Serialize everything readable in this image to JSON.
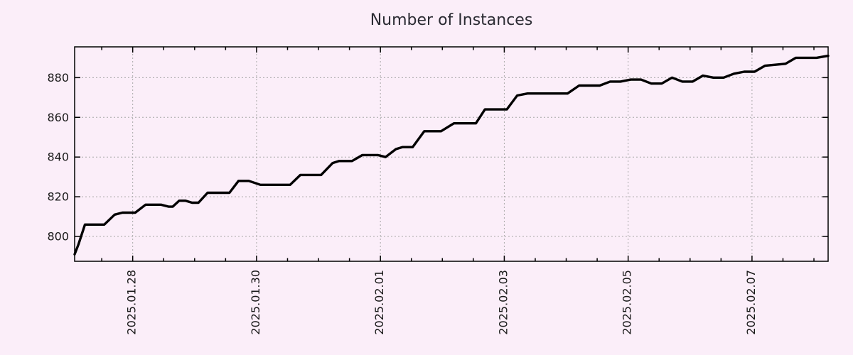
{
  "chart_data": {
    "type": "line",
    "title": "Number of Instances",
    "legend": null,
    "x_axis": {
      "type": "datetime",
      "min": "2025-01-27T01:30",
      "max": "2025-02-08T05:30",
      "major_ticks": [
        {
          "value": "2025-01-28T00:00",
          "label": "2025.01.28"
        },
        {
          "value": "2025-01-30T00:00",
          "label": "2025.01.30"
        },
        {
          "value": "2025-02-01T00:00",
          "label": "2025.02.01"
        },
        {
          "value": "2025-02-03T00:00",
          "label": "2025.02.03"
        },
        {
          "value": "2025-02-05T00:00",
          "label": "2025.02.05"
        },
        {
          "value": "2025-02-07T00:00",
          "label": "2025.02.07"
        }
      ],
      "minor_tick_hours": 12,
      "grid": true
    },
    "y_axis": {
      "min": 787.5,
      "max": 895.5,
      "ticks": [
        {
          "value": 800,
          "label": "800"
        },
        {
          "value": 820,
          "label": "820"
        },
        {
          "value": 840,
          "label": "840"
        },
        {
          "value": 860,
          "label": "860"
        },
        {
          "value": 880,
          "label": "880"
        }
      ],
      "grid": true
    },
    "series": [
      {
        "name": "instances",
        "color": "#000000",
        "line_width": 3.4,
        "points": [
          [
            "2025-01-27T01:30",
            791
          ],
          [
            "2025-01-27T03:00",
            796
          ],
          [
            "2025-01-27T05:30",
            806
          ],
          [
            "2025-01-27T13:00",
            806
          ],
          [
            "2025-01-27T17:00",
            811
          ],
          [
            "2025-01-27T20:00",
            812
          ],
          [
            "2025-01-28T01:00",
            812
          ],
          [
            "2025-01-28T05:00",
            816
          ],
          [
            "2025-01-28T11:00",
            816
          ],
          [
            "2025-01-28T14:00",
            815
          ],
          [
            "2025-01-28T15:30",
            815
          ],
          [
            "2025-01-28T18:00",
            818
          ],
          [
            "2025-01-28T20:30",
            818
          ],
          [
            "2025-01-28T23:00",
            817
          ],
          [
            "2025-01-29T01:30",
            817
          ],
          [
            "2025-01-29T05:00",
            822
          ],
          [
            "2025-01-29T13:30",
            822
          ],
          [
            "2025-01-29T17:00",
            828
          ],
          [
            "2025-01-29T21:00",
            828
          ],
          [
            "2025-01-30T01:30",
            826
          ],
          [
            "2025-01-30T13:00",
            826
          ],
          [
            "2025-01-30T17:00",
            831
          ],
          [
            "2025-01-31T01:00",
            831
          ],
          [
            "2025-01-31T05:30",
            837
          ],
          [
            "2025-01-31T08:00",
            838
          ],
          [
            "2025-01-31T13:00",
            838
          ],
          [
            "2025-01-31T17:00",
            841
          ],
          [
            "2025-01-31T23:00",
            841
          ],
          [
            "2025-02-01T02:00",
            840
          ],
          [
            "2025-02-01T06:00",
            844
          ],
          [
            "2025-02-01T08:30",
            845
          ],
          [
            "2025-02-01T12:30",
            845
          ],
          [
            "2025-02-01T17:00",
            853
          ],
          [
            "2025-02-01T23:30",
            853
          ],
          [
            "2025-02-02T04:30",
            857
          ],
          [
            "2025-02-02T13:00",
            857
          ],
          [
            "2025-02-02T16:30",
            864
          ],
          [
            "2025-02-03T01:00",
            864
          ],
          [
            "2025-02-03T05:00",
            871
          ],
          [
            "2025-02-03T09:00",
            872
          ],
          [
            "2025-02-04T00:30",
            872
          ],
          [
            "2025-02-04T05:00",
            876
          ],
          [
            "2025-02-04T13:00",
            876
          ],
          [
            "2025-02-04T17:00",
            878
          ],
          [
            "2025-02-04T21:00",
            878
          ],
          [
            "2025-02-05T01:00",
            879
          ],
          [
            "2025-02-05T05:00",
            879
          ],
          [
            "2025-02-05T09:00",
            877
          ],
          [
            "2025-02-05T13:00",
            877
          ],
          [
            "2025-02-05T17:00",
            880
          ],
          [
            "2025-02-05T21:00",
            878
          ],
          [
            "2025-02-06T01:00",
            878
          ],
          [
            "2025-02-06T05:00",
            881
          ],
          [
            "2025-02-06T09:00",
            880
          ],
          [
            "2025-02-06T13:00",
            880
          ],
          [
            "2025-02-06T17:00",
            882
          ],
          [
            "2025-02-06T21:00",
            883
          ],
          [
            "2025-02-07T01:00",
            883
          ],
          [
            "2025-02-07T05:00",
            886
          ],
          [
            "2025-02-07T13:00",
            887
          ],
          [
            "2025-02-07T17:00",
            890
          ],
          [
            "2025-02-08T01:00",
            890
          ],
          [
            "2025-02-08T05:30",
            891
          ]
        ]
      }
    ],
    "colors": {
      "background": "#fbeef9",
      "grid": "#a8a8a8",
      "axis": "#000000",
      "tick_text": "#1a1a1a",
      "title_text": "#2b2b33"
    }
  }
}
